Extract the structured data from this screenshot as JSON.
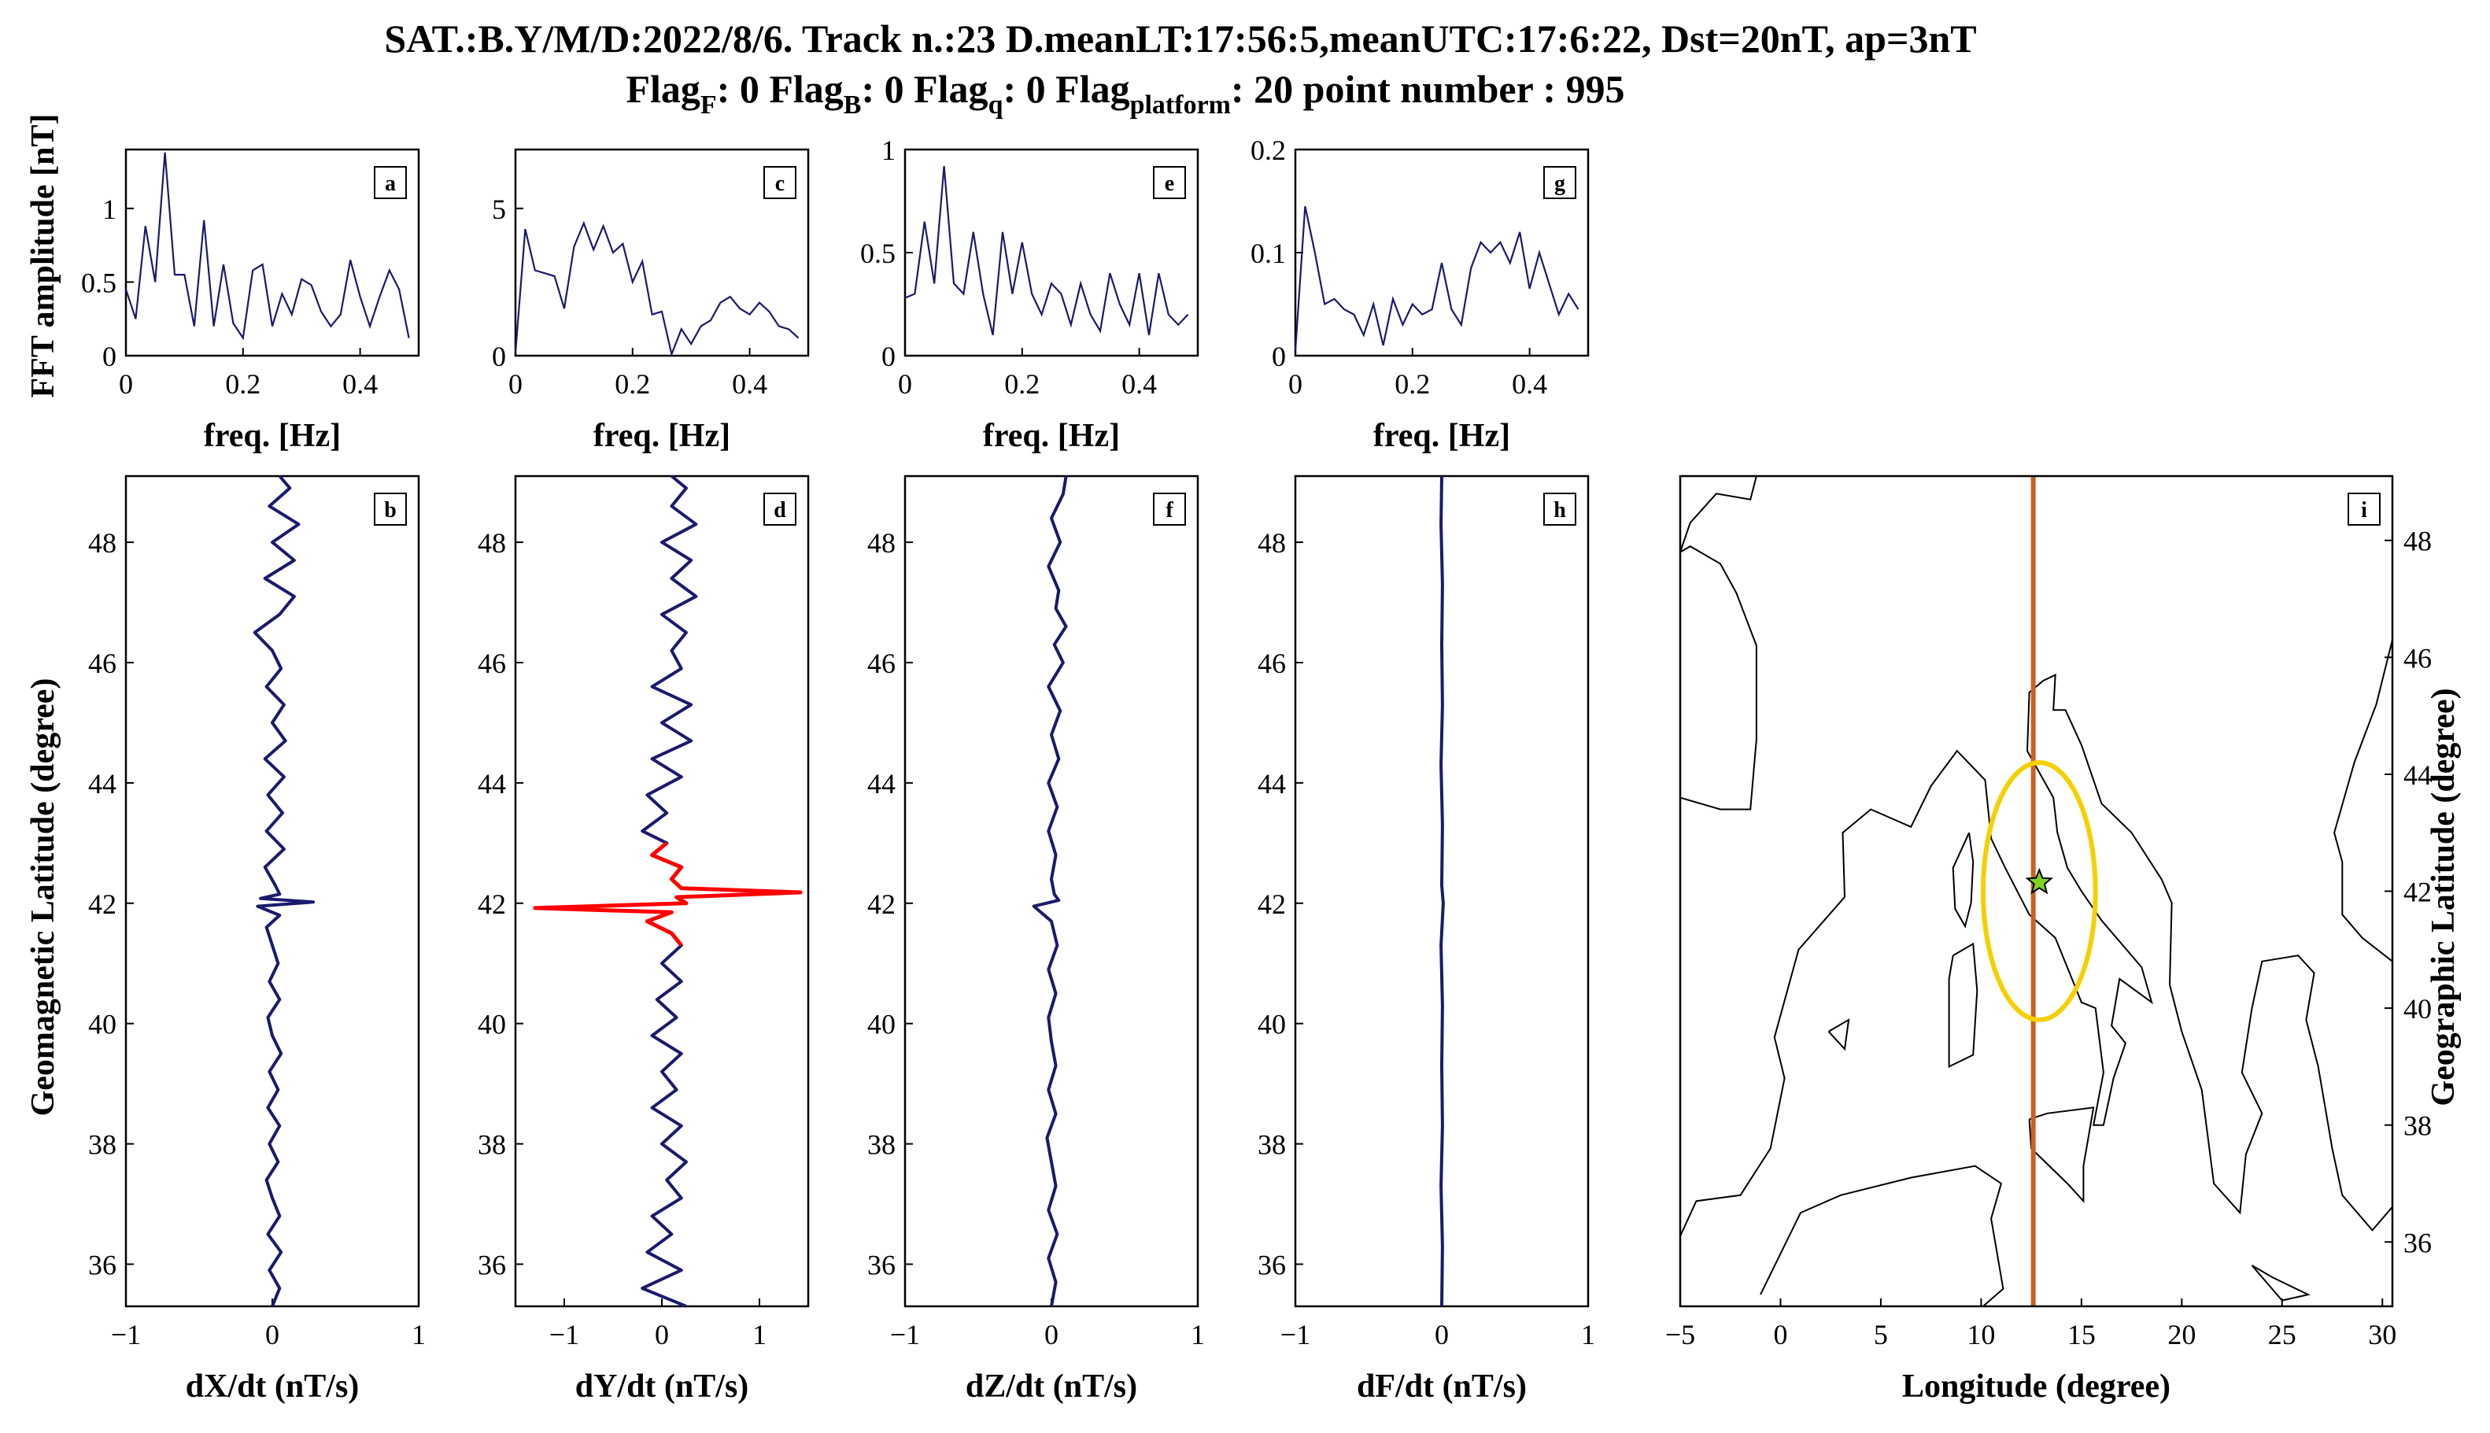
{
  "figure": {
    "title_line1": "SAT.:B.Y/M/D:2022/8/6. Track n.:23 D.meanLT:17:56:5,meanUTC:17:6:22, Dst=20nT, ap=3nT",
    "title_line2": {
      "flagF": "Flag",
      "flagF_sub": "F",
      "flagF_val": ": 0 ",
      "flagB": "Flag",
      "flagB_sub": "B",
      "flagB_val": ": 0 ",
      "flagq": "Flag",
      "flagq_sub": "q",
      "flagq_val": ": 0 ",
      "flagp": "Flag",
      "flagp_sub": "platform",
      "flagp_val": ": 20 point number : 995"
    },
    "colors": {
      "series": "#1a1a6e",
      "highlight": "#ff0000",
      "track": "#c8641e",
      "ellipse": "#f5d000",
      "epicenter": "#7ed321",
      "coast": "#000000"
    },
    "fft_ylabel": "FFT amplitude [nT]",
    "fft_xlabel": "freq. [Hz]",
    "track_ylabel": "Geomagnetic Latitude (degree)",
    "map_xlabel": "Longitude (degree)",
    "map_ylabel": "Geographic Latitude (degree)"
  },
  "chart_data": [
    {
      "type": "line",
      "panel": "a",
      "xlabel": "freq. [Hz]",
      "xlim": [
        0,
        0.5
      ],
      "ylim": [
        0,
        1.4
      ],
      "xticks": [
        0,
        0.2,
        0.4
      ],
      "xtick_labels": [
        "0",
        "0.2",
        "0.4"
      ],
      "yticks": [
        0,
        0.5,
        1
      ],
      "ytick_labels": [
        "0",
        "0.5",
        "1"
      ],
      "x": [
        0,
        0.0167,
        0.0333,
        0.05,
        0.0667,
        0.0833,
        0.1,
        0.1167,
        0.1333,
        0.15,
        0.1667,
        0.1833,
        0.2,
        0.2167,
        0.2333,
        0.25,
        0.2667,
        0.2833,
        0.3,
        0.3167,
        0.3333,
        0.35,
        0.3667,
        0.3833,
        0.4,
        0.4167,
        0.4333,
        0.45,
        0.4667,
        0.4833
      ],
      "y": [
        0.45,
        0.25,
        0.88,
        0.5,
        1.38,
        0.55,
        0.55,
        0.2,
        0.92,
        0.2,
        0.62,
        0.22,
        0.12,
        0.58,
        0.62,
        0.2,
        0.42,
        0.28,
        0.52,
        0.48,
        0.3,
        0.2,
        0.28,
        0.65,
        0.4,
        0.2,
        0.4,
        0.58,
        0.45,
        0.12
      ]
    },
    {
      "type": "line",
      "panel": "c",
      "xlabel": "freq. [Hz]",
      "xlim": [
        0,
        0.5
      ],
      "ylim": [
        0,
        7
      ],
      "xticks": [
        0,
        0.2,
        0.4
      ],
      "xtick_labels": [
        "0",
        "0.2",
        "0.4"
      ],
      "yticks": [
        0,
        5
      ],
      "ytick_labels": [
        "0",
        "5"
      ],
      "x": [
        0,
        0.0167,
        0.0333,
        0.05,
        0.0667,
        0.0833,
        0.1,
        0.1167,
        0.1333,
        0.15,
        0.1667,
        0.1833,
        0.2,
        0.2167,
        0.2333,
        0.25,
        0.2667,
        0.2833,
        0.3,
        0.3167,
        0.3333,
        0.35,
        0.3667,
        0.3833,
        0.4,
        0.4167,
        0.4333,
        0.45,
        0.4667,
        0.4833
      ],
      "y": [
        0.1,
        4.3,
        2.9,
        2.8,
        2.7,
        1.6,
        3.7,
        4.5,
        3.6,
        4.4,
        3.5,
        3.8,
        2.5,
        3.2,
        1.4,
        1.5,
        0.05,
        0.9,
        0.4,
        1.0,
        1.2,
        1.8,
        2.0,
        1.6,
        1.4,
        1.8,
        1.5,
        1.0,
        0.9,
        0.6
      ]
    },
    {
      "type": "line",
      "panel": "e",
      "xlabel": "freq. [Hz]",
      "xlim": [
        0,
        0.5
      ],
      "ylim": [
        0,
        1.0
      ],
      "xticks": [
        0,
        0.2,
        0.4
      ],
      "xtick_labels": [
        "0",
        "0.2",
        "0.4"
      ],
      "yticks": [
        0,
        0.5,
        1
      ],
      "ytick_labels": [
        "0",
        "0.5",
        "1"
      ],
      "x": [
        0,
        0.0167,
        0.0333,
        0.05,
        0.0667,
        0.0833,
        0.1,
        0.1167,
        0.1333,
        0.15,
        0.1667,
        0.1833,
        0.2,
        0.2167,
        0.2333,
        0.25,
        0.2667,
        0.2833,
        0.3,
        0.3167,
        0.3333,
        0.35,
        0.3667,
        0.3833,
        0.4,
        0.4167,
        0.4333,
        0.45,
        0.4667,
        0.4833
      ],
      "y": [
        0.28,
        0.3,
        0.65,
        0.35,
        0.92,
        0.35,
        0.3,
        0.6,
        0.3,
        0.1,
        0.6,
        0.3,
        0.55,
        0.3,
        0.2,
        0.35,
        0.3,
        0.15,
        0.35,
        0.2,
        0.12,
        0.4,
        0.25,
        0.15,
        0.4,
        0.1,
        0.4,
        0.2,
        0.15,
        0.2
      ]
    },
    {
      "type": "line",
      "panel": "g",
      "xlabel": "freq. [Hz]",
      "xlim": [
        0,
        0.5
      ],
      "ylim": [
        0,
        0.2
      ],
      "xticks": [
        0,
        0.2,
        0.4
      ],
      "xtick_labels": [
        "0",
        "0.2",
        "0.4"
      ],
      "yticks": [
        0,
        0.1,
        0.2
      ],
      "ytick_labels": [
        "0",
        "0.1",
        "0.2"
      ],
      "x": [
        0,
        0.0167,
        0.0333,
        0.05,
        0.0667,
        0.0833,
        0.1,
        0.1167,
        0.1333,
        0.15,
        0.1667,
        0.1833,
        0.2,
        0.2167,
        0.2333,
        0.25,
        0.2667,
        0.2833,
        0.3,
        0.3167,
        0.3333,
        0.35,
        0.3667,
        0.3833,
        0.4,
        0.4167,
        0.4333,
        0.45,
        0.4667,
        0.4833
      ],
      "y": [
        0.005,
        0.145,
        0.1,
        0.05,
        0.055,
        0.045,
        0.04,
        0.02,
        0.05,
        0.01,
        0.055,
        0.03,
        0.05,
        0.04,
        0.045,
        0.09,
        0.045,
        0.03,
        0.085,
        0.11,
        0.1,
        0.11,
        0.09,
        0.12,
        0.065,
        0.1,
        0.07,
        0.04,
        0.06,
        0.045
      ]
    },
    {
      "type": "line",
      "panel": "b",
      "xlabel": "dX/dt (nT/s)",
      "ylabel": "Geomagnetic Latitude (degree)",
      "xlim": [
        -1,
        1
      ],
      "ylim": [
        35.3,
        49.1
      ],
      "xticks": [
        -1,
        0,
        1
      ],
      "xtick_labels": [
        "−1",
        "0",
        "1"
      ],
      "yticks": [
        36,
        38,
        40,
        42,
        44,
        46,
        48
      ],
      "ytick_labels": [
        "36",
        "38",
        "40",
        "42",
        "44",
        "46",
        "48"
      ],
      "lat": [
        35.3,
        35.6,
        35.9,
        36.2,
        36.5,
        36.8,
        37.1,
        37.4,
        37.7,
        38.0,
        38.3,
        38.6,
        38.9,
        39.2,
        39.5,
        39.8,
        40.1,
        40.4,
        40.7,
        41.0,
        41.3,
        41.6,
        41.8,
        41.95,
        42.02,
        42.05,
        42.08,
        42.15,
        42.3,
        42.6,
        42.9,
        43.2,
        43.5,
        43.8,
        44.1,
        44.4,
        44.7,
        45.0,
        45.3,
        45.6,
        45.9,
        46.2,
        46.5,
        46.8,
        47.1,
        47.4,
        47.7,
        48.0,
        48.3,
        48.6,
        48.9,
        49.1
      ],
      "value": [
        0.0,
        0.05,
        -0.02,
        0.06,
        -0.03,
        0.05,
        0.0,
        -0.04,
        0.04,
        -0.02,
        0.05,
        -0.03,
        0.04,
        -0.02,
        0.06,
        0.0,
        -0.03,
        0.05,
        -0.02,
        0.04,
        0.0,
        -0.04,
        0.05,
        -0.1,
        0.28,
        0.1,
        -0.08,
        0.05,
        0.02,
        -0.05,
        0.08,
        -0.04,
        0.07,
        -0.03,
        0.08,
        -0.05,
        0.09,
        0.0,
        0.08,
        -0.04,
        0.06,
        0.0,
        -0.12,
        0.05,
        0.15,
        -0.05,
        0.15,
        0.0,
        0.18,
        -0.02,
        0.12,
        0.05
      ]
    },
    {
      "type": "line",
      "panel": "d",
      "xlabel": "dY/dt (nT/s)",
      "xlim": [
        -1.5,
        1.5
      ],
      "ylim": [
        35.3,
        49.1
      ],
      "xticks": [
        -1,
        0,
        1
      ],
      "xtick_labels": [
        "−1",
        "0",
        "1"
      ],
      "yticks": [
        36,
        38,
        40,
        42,
        44,
        46,
        48
      ],
      "ytick_labels": [
        "36",
        "38",
        "40",
        "42",
        "44",
        "46",
        "48"
      ],
      "lat": [
        35.3,
        35.6,
        35.9,
        36.2,
        36.5,
        36.8,
        37.1,
        37.4,
        37.7,
        38.0,
        38.3,
        38.6,
        38.9,
        39.2,
        39.5,
        39.8,
        40.1,
        40.4,
        40.7,
        41.0,
        41.3,
        41.5,
        41.7,
        41.85,
        41.92,
        42.0,
        42.1,
        42.18,
        42.25,
        42.4,
        42.6,
        42.8,
        43.0,
        43.2,
        43.5,
        43.8,
        44.1,
        44.4,
        44.7,
        45.0,
        45.3,
        45.6,
        45.9,
        46.2,
        46.5,
        46.8,
        47.1,
        47.4,
        47.7,
        48.0,
        48.3,
        48.6,
        48.9,
        49.1
      ],
      "value": [
        0.25,
        -0.2,
        0.2,
        -0.15,
        0.1,
        -0.1,
        0.2,
        0.05,
        0.25,
        0.0,
        0.2,
        -0.1,
        0.15,
        0.0,
        0.2,
        -0.1,
        0.15,
        -0.05,
        0.2,
        0.0,
        0.2,
        0.1,
        -0.15,
        0.1,
        -1.3,
        0.25,
        0.15,
        1.42,
        0.2,
        0.1,
        0.2,
        -0.1,
        0.05,
        -0.2,
        0.05,
        -0.15,
        0.2,
        -0.1,
        0.3,
        0.0,
        0.3,
        -0.1,
        0.2,
        0.1,
        0.25,
        0.0,
        0.35,
        0.1,
        0.3,
        0.0,
        0.35,
        0.1,
        0.25,
        0.1
      ],
      "highlight_lat_range": [
        41.2,
        43.0
      ]
    },
    {
      "type": "line",
      "panel": "f",
      "xlabel": "dZ/dt (nT/s)",
      "xlim": [
        -1,
        1
      ],
      "ylim": [
        35.3,
        49.1
      ],
      "xticks": [
        -1,
        0,
        1
      ],
      "xtick_labels": [
        "−1",
        "0",
        "1"
      ],
      "yticks": [
        36,
        38,
        40,
        42,
        44,
        46,
        48
      ],
      "ytick_labels": [
        "36",
        "38",
        "40",
        "42",
        "44",
        "46",
        "48"
      ],
      "lat": [
        35.3,
        35.7,
        36.1,
        36.5,
        36.9,
        37.3,
        37.7,
        38.1,
        38.5,
        38.9,
        39.3,
        39.7,
        40.1,
        40.5,
        40.9,
        41.3,
        41.7,
        41.95,
        42.05,
        42.15,
        42.4,
        42.8,
        43.2,
        43.6,
        44.0,
        44.4,
        44.8,
        45.2,
        45.6,
        46.0,
        46.3,
        46.6,
        46.9,
        47.2,
        47.6,
        48.0,
        48.4,
        48.8,
        49.1
      ],
      "value": [
        0.0,
        0.03,
        -0.02,
        0.04,
        -0.02,
        0.03,
        0.0,
        -0.03,
        0.03,
        -0.02,
        0.03,
        0.0,
        -0.02,
        0.03,
        -0.02,
        0.04,
        0.0,
        -0.12,
        0.05,
        0.02,
        0.0,
        0.03,
        -0.02,
        0.04,
        -0.02,
        0.05,
        0.0,
        0.06,
        -0.02,
        0.08,
        0.02,
        0.1,
        0.03,
        0.05,
        -0.02,
        0.06,
        0.0,
        0.08,
        0.1
      ]
    },
    {
      "type": "line",
      "panel": "h",
      "xlabel": "dF/dt (nT/s)",
      "xlim": [
        -1,
        1
      ],
      "ylim": [
        35.3,
        49.1
      ],
      "xticks": [
        -1,
        0,
        1
      ],
      "xtick_labels": [
        "−1",
        "0",
        "1"
      ],
      "yticks": [
        36,
        38,
        40,
        42,
        44,
        46,
        48
      ],
      "ytick_labels": [
        "36",
        "38",
        "40",
        "42",
        "44",
        "46",
        "48"
      ],
      "lat": [
        35.3,
        36.3,
        37.3,
        38.3,
        39.3,
        40.3,
        41.3,
        42.0,
        42.3,
        43.3,
        44.3,
        45.3,
        46.3,
        47.3,
        48.3,
        49.1
      ],
      "value": [
        0.0,
        0.005,
        -0.005,
        0.005,
        0.0,
        0.005,
        -0.005,
        0.01,
        0.0,
        0.005,
        -0.005,
        0.005,
        0.0,
        0.005,
        -0.005,
        0.0
      ]
    },
    {
      "type": "map",
      "panel": "i",
      "xlabel": "Longitude (degree)",
      "ylabel": "Geographic Latitude (degree)",
      "xlim": [
        -5,
        30.5
      ],
      "ylim": [
        34.9,
        49.1
      ],
      "xticks": [
        -5,
        0,
        5,
        10,
        15,
        20,
        25,
        30
      ],
      "xtick_labels": [
        "−5",
        "0",
        "5",
        "10",
        "15",
        "20",
        "25",
        "30"
      ],
      "yticks": [
        36,
        38,
        40,
        42,
        44,
        46,
        48
      ],
      "ytick_labels": [
        "36",
        "38",
        "40",
        "42",
        "44",
        "46",
        "48"
      ],
      "track_lon": 12.6,
      "ellipse": {
        "lon": 12.9,
        "lat": 42.0,
        "rlon": 2.8,
        "rlat": 2.2
      },
      "epicenter": {
        "lon": 12.9,
        "lat": 42.15
      }
    }
  ]
}
